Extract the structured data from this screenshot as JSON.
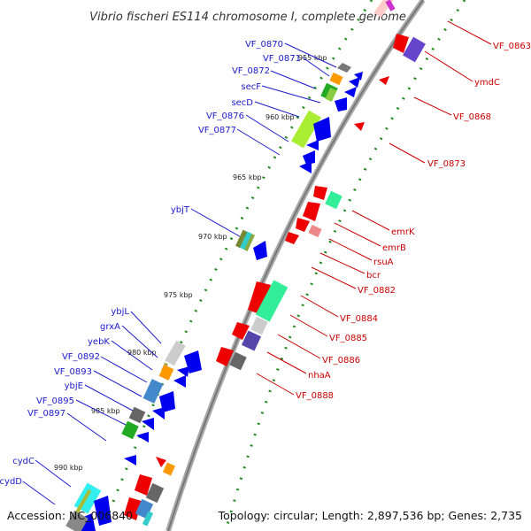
{
  "title": "Vibrio fischeri ES114 chromosome I, complete genome",
  "footer": {
    "accession": "Accession: NC_006840",
    "topology": "Topology: circular; Length: 2,897,536 bp; Genes: 2,735"
  },
  "kbp_labels": [
    "955 kbp",
    "960 kbp",
    "965 kbp",
    "970 kbp",
    "975 kbp",
    "980 kbp",
    "985 kbp",
    "990 kbp"
  ],
  "labels_left": [
    "VF_0870",
    "VF_0871",
    "VF_0872",
    "secF",
    "secD",
    "VF_0876",
    "VF_0877",
    "ybjT",
    "ybjL",
    "grxA",
    "yebK",
    "VF_0892",
    "VF_0893",
    "ybjE",
    "VF_0895",
    "VF_0897",
    "cydC",
    "cydD"
  ],
  "labels_right": [
    "VF_0863",
    "ymdC",
    "VF_0868",
    "VF_0873",
    "emrK",
    "emrB",
    "rsuA",
    "bcr",
    "VF_0882",
    "VF_0884",
    "VF_0885",
    "VF_0886",
    "nhaA",
    "VF_0888"
  ],
  "colors": {
    "forward": "#0000ee",
    "reverse": "#ee0000",
    "backbone": "#999999",
    "gc_dots": "#228b22",
    "label_forward": "#1a1acc",
    "label_reverse": "#cc0000"
  }
}
